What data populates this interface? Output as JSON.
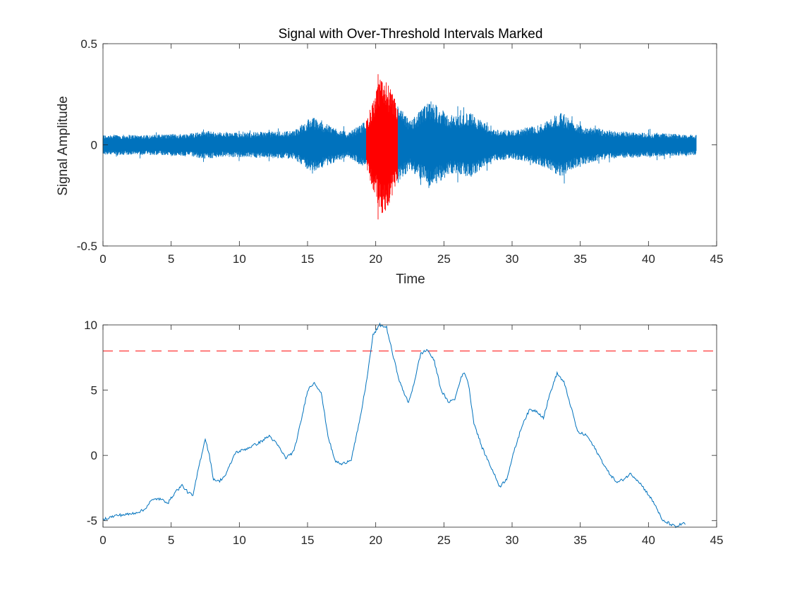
{
  "chart_data": [
    {
      "type": "line",
      "title": "Signal with Over-Threshold Intervals Marked",
      "xlabel": "Time",
      "ylabel": "Signal Amplitude",
      "xlim": [
        0,
        45
      ],
      "ylim": [
        -0.5,
        0.5
      ],
      "x_ticks": [
        "0",
        "5",
        "10",
        "15",
        "20",
        "25",
        "30",
        "35",
        "40",
        "45"
      ],
      "y_ticks": [
        "-0.5",
        "0",
        "0.5"
      ],
      "signal_extent": [
        0,
        43.5
      ],
      "over_threshold_interval": [
        19.3,
        21.6
      ],
      "envelope": [
        [
          0,
          0.05
        ],
        [
          3,
          0.05
        ],
        [
          6,
          0.055
        ],
        [
          7.5,
          0.07
        ],
        [
          9,
          0.06
        ],
        [
          12,
          0.065
        ],
        [
          14,
          0.07
        ],
        [
          15.3,
          0.14
        ],
        [
          16.5,
          0.1
        ],
        [
          18,
          0.06
        ],
        [
          19.3,
          0.12
        ],
        [
          20.5,
          0.36
        ],
        [
          21.6,
          0.2
        ],
        [
          22.5,
          0.12
        ],
        [
          24,
          0.22
        ],
        [
          25.5,
          0.14
        ],
        [
          27,
          0.16
        ],
        [
          28.5,
          0.08
        ],
        [
          30,
          0.07
        ],
        [
          32,
          0.1
        ],
        [
          33.5,
          0.16
        ],
        [
          35,
          0.1
        ],
        [
          37,
          0.07
        ],
        [
          40,
          0.06
        ],
        [
          43.5,
          0.05
        ]
      ],
      "series_colors": {
        "signal": "#0072BD",
        "over_threshold": "#FF0000"
      },
      "grid": false
    },
    {
      "type": "line",
      "title": "",
      "xlabel": "",
      "ylabel": "",
      "xlim": [
        0,
        45
      ],
      "ylim": [
        -5.5,
        10
      ],
      "x_ticks": [
        "0",
        "5",
        "10",
        "15",
        "20",
        "25",
        "30",
        "35",
        "40",
        "45"
      ],
      "y_ticks": [
        "-5",
        "0",
        "5",
        "10"
      ],
      "threshold": 8,
      "series": [
        {
          "color": "#0072BD",
          "points": [
            [
              0,
              -4.9
            ],
            [
              1,
              -4.6
            ],
            [
              2,
              -4.5
            ],
            [
              3,
              -4.2
            ],
            [
              3.5,
              -3.5
            ],
            [
              4,
              -3.3
            ],
            [
              4.8,
              -3.6
            ],
            [
              5.3,
              -2.8
            ],
            [
              5.8,
              -2.3
            ],
            [
              6.2,
              -2.8
            ],
            [
              6.6,
              -3.1
            ],
            [
              7,
              -1
            ],
            [
              7.5,
              1.3
            ],
            [
              7.8,
              0
            ],
            [
              8.1,
              -1.8
            ],
            [
              8.5,
              -2.0
            ],
            [
              9,
              -1.5
            ],
            [
              9.7,
              0.2
            ],
            [
              10.5,
              0.5
            ],
            [
              11.5,
              1.0
            ],
            [
              12.2,
              1.5
            ],
            [
              12.8,
              0.8
            ],
            [
              13.4,
              -0.2
            ],
            [
              14,
              0.3
            ],
            [
              14.5,
              2.5
            ],
            [
              15,
              5.0
            ],
            [
              15.5,
              5.6
            ],
            [
              16,
              4.8
            ],
            [
              16.5,
              1.5
            ],
            [
              17,
              -0.4
            ],
            [
              17.5,
              -0.7
            ],
            [
              18.2,
              -0.3
            ],
            [
              18.8,
              2.5
            ],
            [
              19.3,
              5.5
            ],
            [
              19.8,
              9.2
            ],
            [
              20.3,
              10.0
            ],
            [
              20.8,
              9.8
            ],
            [
              21.3,
              7.5
            ],
            [
              21.8,
              5.5
            ],
            [
              22.4,
              4.0
            ],
            [
              22.8,
              5.5
            ],
            [
              23.3,
              7.8
            ],
            [
              23.8,
              8.1
            ],
            [
              24.3,
              7.2
            ],
            [
              24.8,
              5.0
            ],
            [
              25.3,
              4.1
            ],
            [
              25.8,
              4.3
            ],
            [
              26.2,
              5.8
            ],
            [
              26.5,
              6.4
            ],
            [
              26.8,
              5.5
            ],
            [
              27.2,
              2.5
            ],
            [
              27.8,
              0.6
            ],
            [
              28.5,
              -1.0
            ],
            [
              29.1,
              -2.4
            ],
            [
              29.6,
              -1.8
            ],
            [
              30.2,
              0.5
            ],
            [
              30.8,
              2.5
            ],
            [
              31.3,
              3.5
            ],
            [
              31.8,
              3.4
            ],
            [
              32.3,
              2.9
            ],
            [
              32.8,
              4.8
            ],
            [
              33.3,
              6.3
            ],
            [
              33.8,
              5.6
            ],
            [
              34.3,
              3.8
            ],
            [
              34.8,
              1.8
            ],
            [
              35.5,
              1.5
            ],
            [
              36.2,
              0.3
            ],
            [
              37,
              -1.2
            ],
            [
              37.7,
              -2.1
            ],
            [
              38.2,
              -1.8
            ],
            [
              38.7,
              -1.4
            ],
            [
              39.3,
              -2.0
            ],
            [
              40,
              -3.0
            ],
            [
              40.6,
              -4.0
            ],
            [
              41,
              -5.0
            ],
            [
              41.5,
              -5.2
            ],
            [
              42,
              -5.5
            ],
            [
              42.5,
              -5.2
            ],
            [
              42.7,
              -5.3
            ]
          ]
        }
      ],
      "threshold_color": "#FF0000",
      "grid": false
    }
  ]
}
